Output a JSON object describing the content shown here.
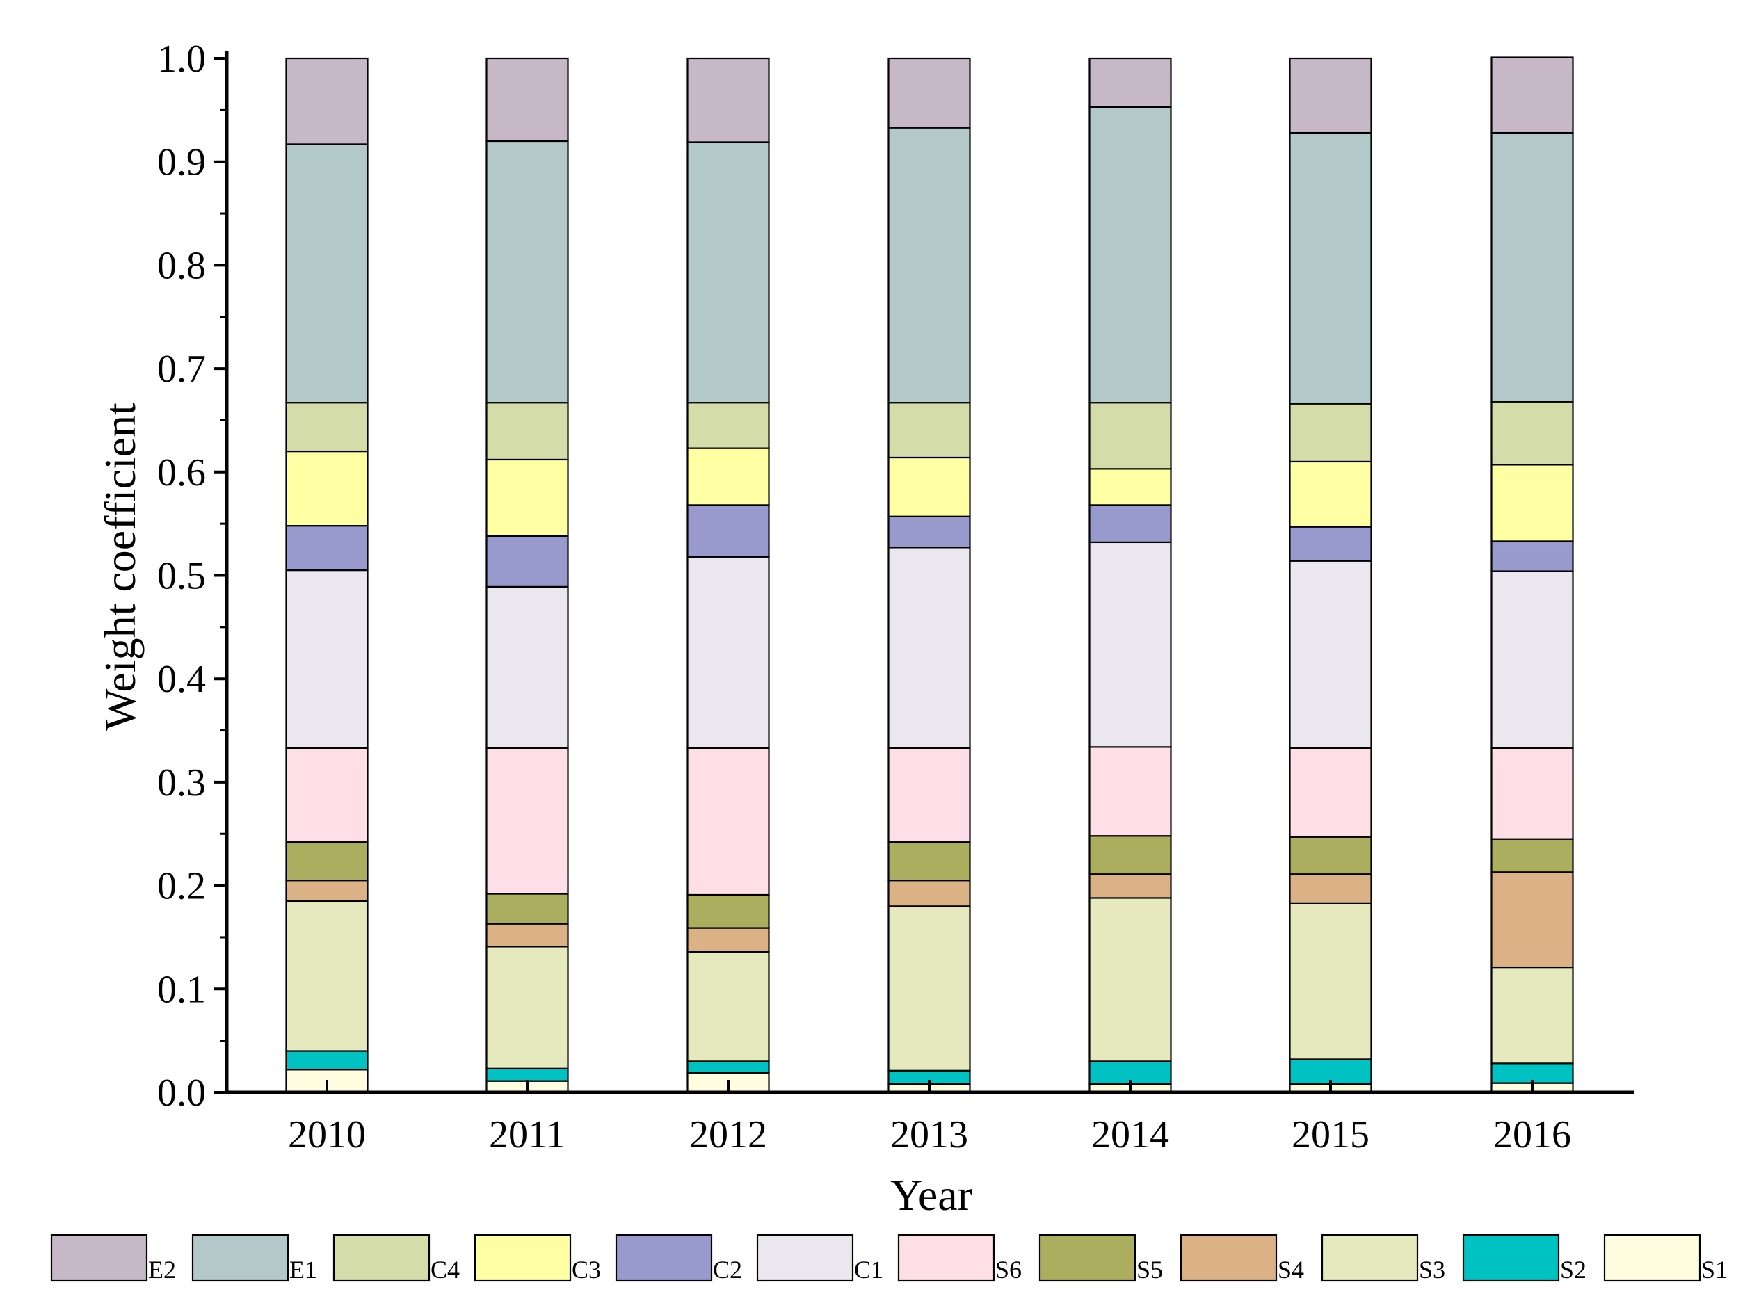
{
  "chart_data": {
    "type": "bar",
    "stacked": true,
    "title": "",
    "xlabel": "Year",
    "ylabel": "Weight coefficient",
    "ylim": [
      0,
      1.0
    ],
    "yticks": [
      "0.0",
      "0.1",
      "0.2",
      "0.3",
      "0.4",
      "0.5",
      "0.6",
      "0.7",
      "0.8",
      "0.9",
      "1.0"
    ],
    "grid": false,
    "legend_position": "bottom",
    "categories": [
      "2010",
      "2011",
      "2012",
      "2013",
      "2014",
      "2015",
      "2016"
    ],
    "series": [
      {
        "name": "S1",
        "color": "#FFFDE0",
        "values": [
          0.022,
          0.011,
          0.019,
          0.008,
          0.008,
          0.008,
          0.009
        ]
      },
      {
        "name": "S2",
        "color": "#00C2C2",
        "values": [
          0.018,
          0.012,
          0.011,
          0.013,
          0.022,
          0.024,
          0.019
        ]
      },
      {
        "name": "S3",
        "color": "#E6E8BE",
        "values": [
          0.145,
          0.118,
          0.106,
          0.159,
          0.158,
          0.151,
          0.093
        ]
      },
      {
        "name": "S4",
        "color": "#DBB186",
        "values": [
          0.02,
          0.022,
          0.023,
          0.025,
          0.023,
          0.028,
          0.092
        ]
      },
      {
        "name": "S5",
        "color": "#ABAD5F",
        "values": [
          0.037,
          0.029,
          0.032,
          0.037,
          0.037,
          0.036,
          0.032
        ]
      },
      {
        "name": "S6",
        "color": "#FFDFE7",
        "values": [
          0.091,
          0.141,
          0.142,
          0.091,
          0.086,
          0.086,
          0.088
        ]
      },
      {
        "name": "C1",
        "color": "#EAE8EE",
        "values": [
          0.172,
          0.156,
          0.185,
          0.194,
          0.198,
          0.181,
          0.171
        ]
      },
      {
        "name": "C2",
        "color": "#9899CC",
        "values": [
          0.043,
          0.049,
          0.05,
          0.03,
          0.036,
          0.033,
          0.029
        ]
      },
      {
        "name": "C3",
        "color": "#FFFFA3",
        "values": [
          0.072,
          0.074,
          0.055,
          0.057,
          0.035,
          0.063,
          0.074
        ]
      },
      {
        "name": "C4",
        "color": "#D4DCA9",
        "values": [
          0.047,
          0.055,
          0.044,
          0.053,
          0.064,
          0.056,
          0.061
        ]
      },
      {
        "name": "E1",
        "color": "#B3C8C8",
        "values": [
          0.25,
          0.253,
          0.252,
          0.266,
          0.286,
          0.262,
          0.26
        ]
      },
      {
        "name": "E2",
        "color": "#C7B8C8",
        "values": [
          0.083,
          0.08,
          0.081,
          0.067,
          0.047,
          0.072,
          0.073
        ]
      }
    ],
    "legend_order": [
      "E2",
      "E1",
      "C4",
      "C3",
      "C2",
      "C1",
      "S6",
      "S5",
      "S4",
      "S3",
      "S2",
      "S1"
    ]
  }
}
